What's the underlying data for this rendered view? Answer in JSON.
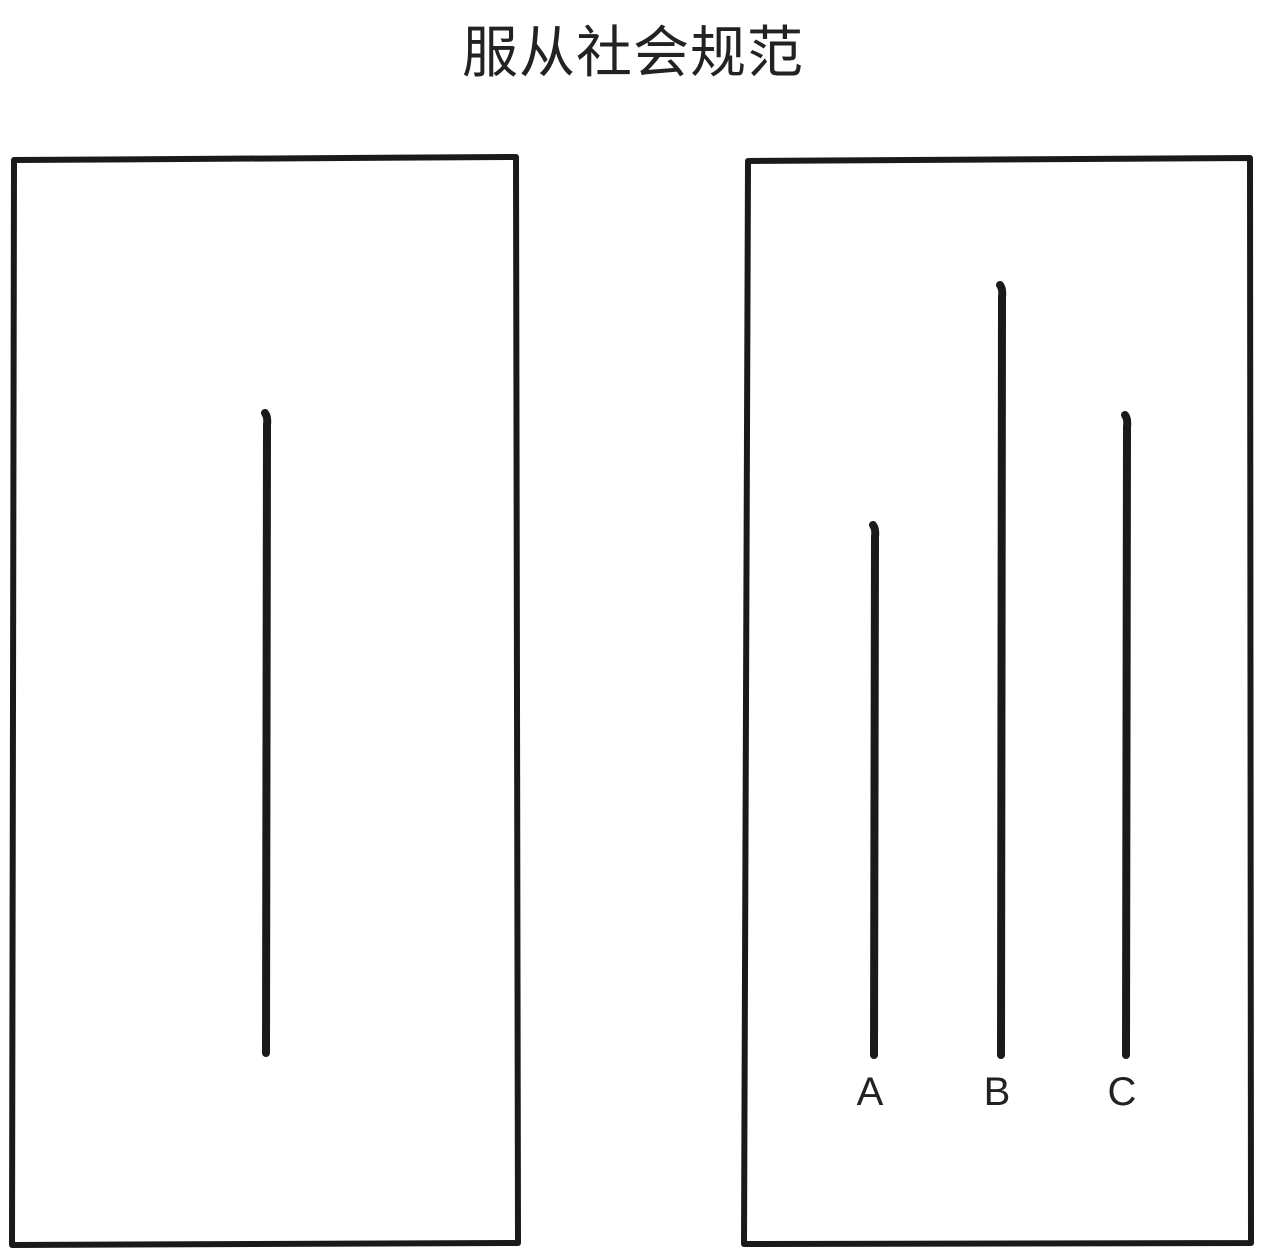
{
  "title": "服从社会规范",
  "colors": {
    "ink": "#1a1a1a",
    "background": "#ffffff"
  },
  "reference_card": {
    "lines": [
      {
        "label": "",
        "length": 640
      }
    ]
  },
  "comparison_card": {
    "lines": [
      {
        "label": "A",
        "length": 530
      },
      {
        "label": "B",
        "length": 770
      },
      {
        "label": "C",
        "length": 640
      }
    ]
  }
}
